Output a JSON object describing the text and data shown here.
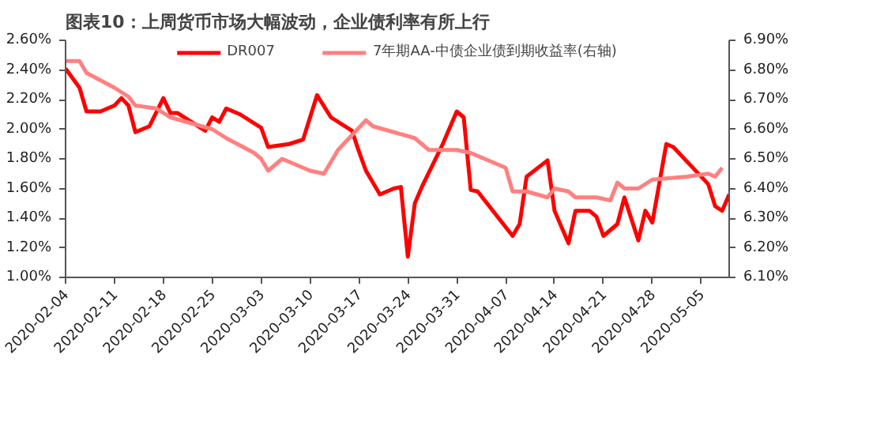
{
  "chart_data": {
    "type": "line",
    "title": "图表10：上周货币市场大幅波动，企业债利率有所上行",
    "xlim": [
      "2020-02-04",
      "2020-05-09"
    ],
    "xticks": [
      "2020-02-04",
      "2020-02-11",
      "2020-02-18",
      "2020-02-25",
      "2020-03-03",
      "2020-03-10",
      "2020-03-17",
      "2020-03-24",
      "2020-03-31",
      "2020-04-07",
      "2020-04-14",
      "2020-04-21",
      "2020-04-28",
      "2020-05-05"
    ],
    "ylim": [
      1.0,
      2.6
    ],
    "yticks": [
      {
        "value": 1.0,
        "label": "1.00%"
      },
      {
        "value": 1.2,
        "label": "1.20%"
      },
      {
        "value": 1.4,
        "label": "1.40%"
      },
      {
        "value": 1.6,
        "label": "1.60%"
      },
      {
        "value": 1.8,
        "label": "1.80%"
      },
      {
        "value": 2.0,
        "label": "2.00%"
      },
      {
        "value": 2.2,
        "label": "2.20%"
      },
      {
        "value": 2.4,
        "label": "2.40%"
      },
      {
        "value": 2.6,
        "label": "2.60%"
      }
    ],
    "y2lim": [
      6.1,
      6.9
    ],
    "y2ticks": [
      {
        "value": 6.1,
        "label": "6.10%"
      },
      {
        "value": 6.2,
        "label": "6.20%"
      },
      {
        "value": 6.3,
        "label": "6.30%"
      },
      {
        "value": 6.4,
        "label": "6.40%"
      },
      {
        "value": 6.5,
        "label": "6.50%"
      },
      {
        "value": 6.6,
        "label": "6.60%"
      },
      {
        "value": 6.7,
        "label": "6.70%"
      },
      {
        "value": 6.8,
        "label": "6.80%"
      },
      {
        "value": 6.9,
        "label": "6.90%"
      }
    ],
    "grid": false,
    "legend": "top",
    "marker": "none",
    "line_style": "solid",
    "series": [
      {
        "name": "DR007",
        "color": "#ff0000",
        "x": [
          "2020-02-04",
          "2020-02-06",
          "2020-02-07",
          "2020-02-09",
          "2020-02-11",
          "2020-02-12",
          "2020-02-13",
          "2020-02-14",
          "2020-02-16",
          "2020-02-18",
          "2020-02-19",
          "2020-02-20",
          "2020-02-24",
          "2020-02-25",
          "2020-02-26",
          "2020-02-27",
          "2020-02-29",
          "2020-03-03",
          "2020-03-04",
          "2020-03-07",
          "2020-03-09",
          "2020-03-10",
          "2020-03-11",
          "2020-03-13",
          "2020-03-16",
          "2020-03-17",
          "2020-03-18",
          "2020-03-20",
          "2020-03-22",
          "2020-03-23",
          "2020-03-24",
          "2020-03-25",
          "2020-03-26",
          "2020-03-29",
          "2020-03-31",
          "2020-04-01",
          "2020-04-02",
          "2020-04-03",
          "2020-04-08",
          "2020-04-09",
          "2020-04-10",
          "2020-04-13",
          "2020-04-14",
          "2020-04-16",
          "2020-04-17",
          "2020-04-19",
          "2020-04-20",
          "2020-04-21",
          "2020-04-23",
          "2020-04-24",
          "2020-04-26",
          "2020-04-27",
          "2020-04-28",
          "2020-04-30",
          "2020-05-01",
          "2020-05-06",
          "2020-05-07",
          "2020-05-08",
          "2020-05-09"
        ],
        "values": [
          2.41,
          2.28,
          2.12,
          2.12,
          2.16,
          2.21,
          2.16,
          1.98,
          2.02,
          2.21,
          2.11,
          2.11,
          1.99,
          2.08,
          2.05,
          2.14,
          2.1,
          2.01,
          1.88,
          1.9,
          1.93,
          2.08,
          2.23,
          2.08,
          1.99,
          1.85,
          1.72,
          1.56,
          1.6,
          1.61,
          1.14,
          1.5,
          1.61,
          1.9,
          2.12,
          2.08,
          1.59,
          1.58,
          1.28,
          1.36,
          1.68,
          1.79,
          1.45,
          1.23,
          1.45,
          1.45,
          1.41,
          1.28,
          1.36,
          1.54,
          1.25,
          1.45,
          1.37,
          1.9,
          1.88,
          1.63,
          1.48,
          1.45,
          1.56
        ]
      },
      {
        "name": "7年期AA-中债企业债到期收益率(右轴)",
        "color": "#ff8080",
        "axis": "y2",
        "x": [
          "2020-02-04",
          "2020-02-06",
          "2020-02-07",
          "2020-02-11",
          "2020-02-13",
          "2020-02-14",
          "2020-02-17",
          "2020-02-19",
          "2020-02-25",
          "2020-02-27",
          "2020-03-02",
          "2020-03-03",
          "2020-03-04",
          "2020-03-06",
          "2020-03-10",
          "2020-03-12",
          "2020-03-14",
          "2020-03-18",
          "2020-03-19",
          "2020-03-22",
          "2020-03-25",
          "2020-03-27",
          "2020-03-31",
          "2020-04-02",
          "2020-04-07",
          "2020-04-08",
          "2020-04-10",
          "2020-04-13",
          "2020-04-14",
          "2020-04-16",
          "2020-04-17",
          "2020-04-20",
          "2020-04-22",
          "2020-04-23",
          "2020-04-24",
          "2020-04-26",
          "2020-04-28",
          "2020-05-03",
          "2020-05-06",
          "2020-05-07",
          "2020-05-08"
        ],
        "values": [
          6.83,
          6.83,
          6.79,
          6.74,
          6.71,
          6.68,
          6.67,
          6.64,
          6.6,
          6.57,
          6.52,
          6.5,
          6.46,
          6.5,
          6.46,
          6.45,
          6.53,
          6.63,
          6.61,
          6.59,
          6.57,
          6.53,
          6.53,
          6.52,
          6.47,
          6.39,
          6.39,
          6.37,
          6.4,
          6.39,
          6.37,
          6.37,
          6.36,
          6.42,
          6.4,
          6.4,
          6.43,
          6.44,
          6.45,
          6.44,
          6.47
        ]
      }
    ]
  }
}
